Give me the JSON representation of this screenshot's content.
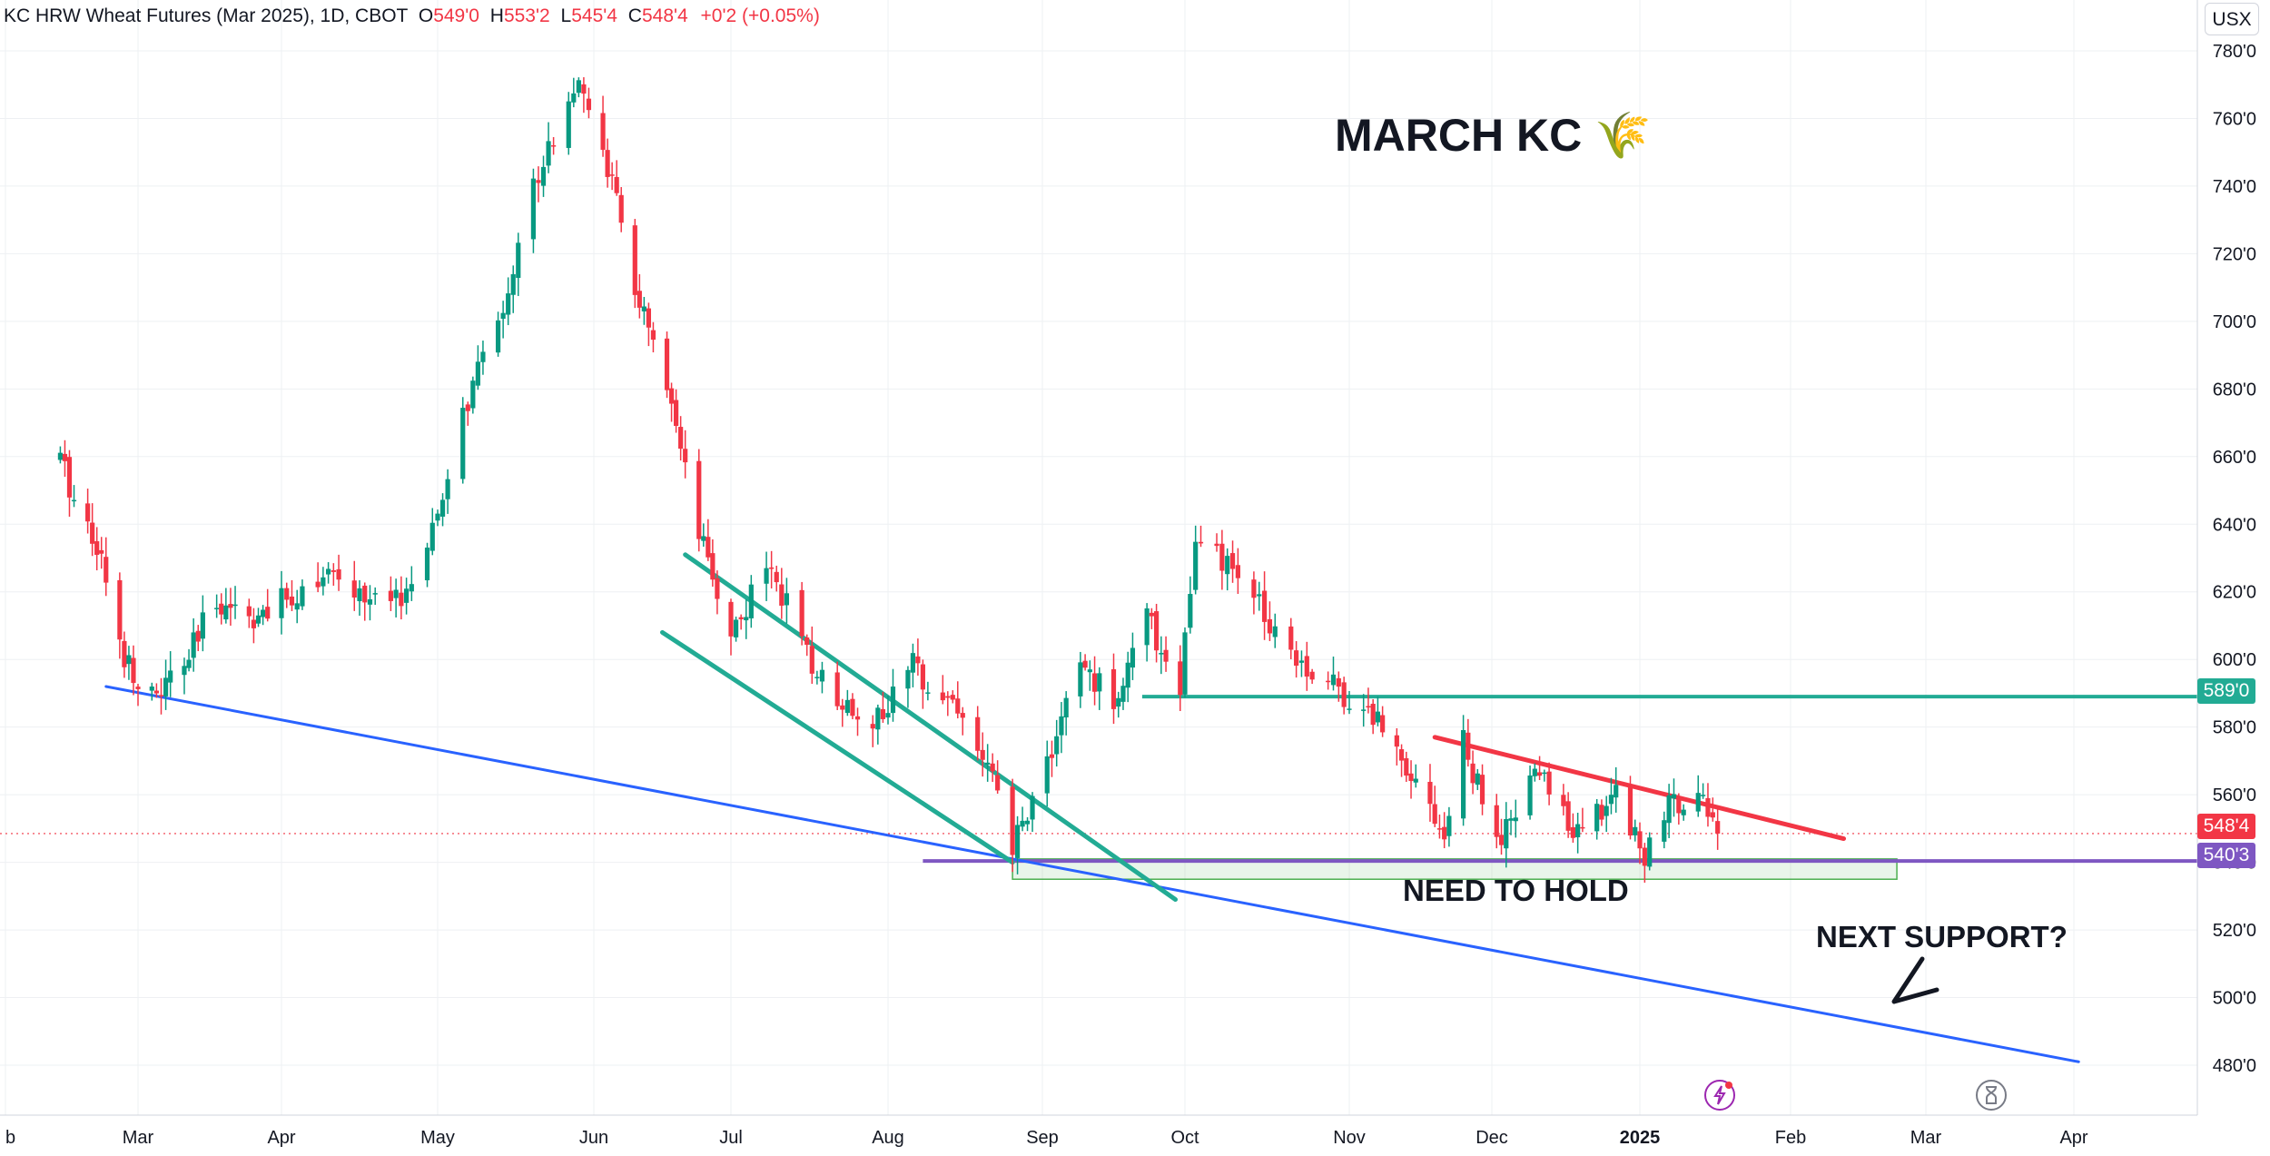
{
  "header": {
    "title": "KC HRW Wheat Futures (Mar 2025), 1D, CBOT",
    "o_label": "O",
    "o_value": "549'0",
    "h_label": "H",
    "h_value": "553'2",
    "l_label": "L",
    "l_value": "545'4",
    "c_label": "C",
    "c_value": "548'4",
    "change": "+0'2 (+0.05%)"
  },
  "currency": "USX",
  "annotations": {
    "title": "MARCH KC 🌾",
    "need_to_hold": "NEED TO HOLD",
    "next_support": "NEXT SUPPORT?"
  },
  "price_badges": {
    "resistance": "589'0",
    "last": "548'4",
    "support": "540'3"
  },
  "icons": [
    "lightning-icon",
    "hourglass-icon"
  ],
  "colors": {
    "up": "#089981",
    "down": "#f23645",
    "trend_blue": "#2962ff",
    "resistance": "#22ab94",
    "support": "#7e57c2",
    "red_line": "#f23645",
    "zone": "#4caf50"
  },
  "chart_data": {
    "type": "candlestick",
    "title": "KC HRW Wheat Futures (Mar 2025), 1D, CBOT",
    "x_axis": {
      "type": "date",
      "labels": [
        "b",
        "Mar",
        "Apr",
        "May",
        "Jun",
        "Jul",
        "Aug",
        "Sep",
        "Oct",
        "Nov",
        "Dec",
        "2025",
        "Feb",
        "Mar",
        "Apr"
      ]
    },
    "y_axis": {
      "side": "right",
      "ticks": [
        "780'0",
        "760'0",
        "740'0",
        "720'0",
        "700'0",
        "680'0",
        "660'0",
        "640'0",
        "620'0",
        "600'0",
        "580'0",
        "560'0",
        "540'0",
        "520'0",
        "500'0",
        "480'0"
      ],
      "ylim": [
        472,
        788
      ]
    },
    "grid": true,
    "price_path": [
      [
        "2024-02-13",
        659
      ],
      [
        "2024-02-16",
        648
      ],
      [
        "2024-02-21",
        635
      ],
      [
        "2024-02-26",
        604
      ],
      [
        "2024-03-04",
        588
      ],
      [
        "2024-03-11",
        598
      ],
      [
        "2024-03-18",
        618
      ],
      [
        "2024-03-28",
        612
      ],
      [
        "2024-04-08",
        625
      ],
      [
        "2024-04-22",
        615
      ],
      [
        "2024-04-29",
        630
      ],
      [
        "2024-05-06",
        672
      ],
      [
        "2024-05-14",
        705
      ],
      [
        "2024-05-21",
        745
      ],
      [
        "2024-05-28",
        770
      ],
      [
        "2024-06-03",
        752
      ],
      [
        "2024-06-10",
        710
      ],
      [
        "2024-06-17",
        678
      ],
      [
        "2024-06-24",
        636
      ],
      [
        "2024-07-01",
        608
      ],
      [
        "2024-07-09",
        628
      ],
      [
        "2024-07-16",
        600
      ],
      [
        "2024-07-23",
        588
      ],
      [
        "2024-07-30",
        582
      ],
      [
        "2024-08-06",
        598
      ],
      [
        "2024-08-14",
        588
      ],
      [
        "2024-08-21",
        568
      ],
      [
        "2024-08-26",
        544
      ],
      [
        "2024-09-02",
        570
      ],
      [
        "2024-09-09",
        598
      ],
      [
        "2024-09-16",
        588
      ],
      [
        "2024-09-23",
        612
      ],
      [
        "2024-09-30",
        592
      ],
      [
        "2024-10-03",
        634
      ],
      [
        "2024-10-10",
        626
      ],
      [
        "2024-10-17",
        612
      ],
      [
        "2024-10-24",
        598
      ],
      [
        "2024-10-31",
        590
      ],
      [
        "2024-11-07",
        582
      ],
      [
        "2024-11-14",
        568
      ],
      [
        "2024-11-21",
        548
      ],
      [
        "2024-11-25",
        575
      ],
      [
        "2024-12-02",
        545
      ],
      [
        "2024-12-06",
        553
      ],
      [
        "2024-12-10",
        568
      ],
      [
        "2024-12-16",
        555
      ],
      [
        "2024-12-20",
        548
      ],
      [
        "2024-12-27",
        562
      ],
      [
        "2025-01-02",
        542
      ],
      [
        "2025-01-08",
        558
      ],
      [
        "2025-01-13",
        562
      ],
      [
        "2025-01-17",
        548.5
      ]
    ],
    "last_close": 548.5,
    "horizontal_levels": [
      {
        "label": "589'0",
        "value": 589
      },
      {
        "label": "540'3",
        "value": 540.4
      }
    ],
    "trend_lines": [
      {
        "color": "blue",
        "from": [
          "2024-02-23",
          592
        ],
        "to": [
          "2025-04-02",
          481
        ]
      },
      {
        "color": "green",
        "from": [
          "2024-06-21",
          631
        ],
        "to": [
          "2024-09-29",
          529
        ]
      },
      {
        "color": "green",
        "from": [
          "2024-06-16",
          608
        ],
        "to": [
          "2024-08-26",
          540
        ]
      },
      {
        "color": "red",
        "from": [
          "2024-11-19",
          577
        ],
        "to": [
          "2025-02-12",
          547
        ]
      }
    ],
    "zone": {
      "from": "2024-08-26",
      "to": "2025-02-23",
      "low": 535,
      "high": 541
    }
  }
}
